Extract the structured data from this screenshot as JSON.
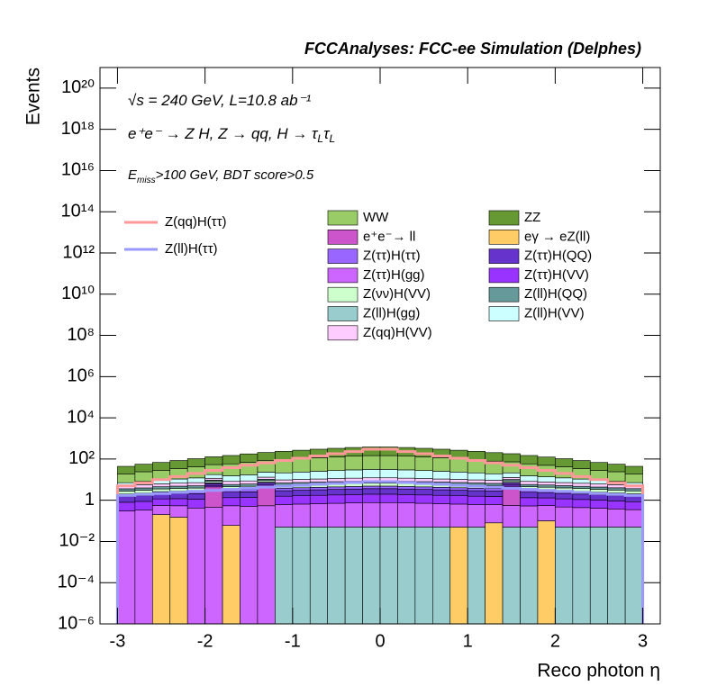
{
  "chart_data": {
    "type": "stacked-histogram",
    "title": "FCCAnalyses: FCC-ee Simulation (Delphes)",
    "xlabel": "Reco photon η",
    "ylabel": "Events",
    "annotations": [
      [
        {
          "text": "√s = 240 GeV, L=10.8 ab⁻¹"
        }
      ],
      [
        {
          "text": "e⁺e⁻ → Z H, Z  → qq, H  → τ"
        },
        {
          "sub": "L"
        },
        {
          "text": "τ"
        },
        {
          "sub": "L"
        }
      ],
      [
        {
          "text": "E"
        },
        {
          "sub": "miss"
        },
        {
          "text": ">100 GeV, BDT score>0.5"
        }
      ]
    ],
    "log_y": true,
    "xlim": [
      -3.2,
      3.2
    ],
    "ylim": [
      1e-06,
      1e+21
    ],
    "xticks": [
      -3,
      -2,
      -1,
      0,
      1,
      2,
      3
    ],
    "yticks": [
      {
        "value": 1e-06,
        "label": "10⁻⁶"
      },
      {
        "value": 0.0001,
        "label": "10⁻⁴"
      },
      {
        "value": 0.01,
        "label": "10⁻²"
      },
      1,
      {
        "value": 100,
        "label": "10²"
      },
      {
        "value": 10000.0,
        "label": "10⁴"
      },
      {
        "value": 1000000.0,
        "label": "10⁶"
      },
      {
        "value": 100000000.0,
        "label": "10⁸"
      },
      {
        "value": 10000000000.0,
        "label": "10¹⁰"
      },
      {
        "value": 1000000000000.0,
        "label": "10¹²"
      },
      {
        "value": 100000000000000.0,
        "label": "10¹⁴"
      },
      {
        "value": 1e+16,
        "label": "10¹⁶"
      },
      {
        "value": 1e+18,
        "label": "10¹⁸"
      },
      {
        "value": 1e+20,
        "label": "10²⁰"
      }
    ],
    "bins": [
      -3,
      -2.8,
      -2.6,
      -2.4,
      -2.2,
      -2,
      -1.8,
      -1.6,
      -1.4,
      -1.2,
      -1,
      -0.8,
      -0.6,
      -0.4,
      -0.2,
      0,
      0.2,
      0.4,
      0.6,
      0.8,
      1,
      1.2,
      1.4,
      1.6,
      1.8,
      2,
      2.2,
      2.4,
      2.6,
      2.8,
      3
    ],
    "series": [
      {
        "name": "WW",
        "color": "#99cc66",
        "values": [
          12,
          16,
          19,
          24,
          30,
          36,
          43,
          52,
          60,
          70,
          79,
          89,
          98,
          108,
          115,
          115,
          108,
          98,
          89,
          79,
          70,
          60,
          52,
          43,
          36,
          30,
          24,
          19,
          16,
          12
        ]
      },
      {
        "name": "ZZ",
        "color": "#669933",
        "values": [
          25,
          32,
          40,
          50,
          62,
          75,
          90,
          108,
          125,
          145,
          165,
          185,
          205,
          225,
          240,
          240,
          225,
          205,
          185,
          165,
          145,
          125,
          108,
          90,
          75,
          62,
          50,
          40,
          32,
          25
        ]
      },
      {
        "name": "e⁺e⁻→ ll",
        "color": "#cc55cc",
        "values": [
          0,
          0,
          0,
          0,
          0,
          4,
          0,
          0,
          4,
          0,
          0,
          0,
          0,
          0,
          0,
          0,
          0,
          0,
          0,
          0,
          0,
          0,
          4,
          0,
          0,
          0,
          0,
          0,
          0,
          0
        ]
      },
      {
        "name": "eγ → eZ(ll)",
        "color": "#ffcc66",
        "values": [
          0,
          0,
          0.2,
          0.15,
          0,
          0,
          0.06,
          0,
          0,
          0,
          0,
          0,
          0,
          0,
          0,
          0,
          0,
          0,
          0,
          0.05,
          0,
          0.08,
          0,
          0,
          0.1,
          0,
          0,
          0,
          0,
          0
        ]
      },
      {
        "name": "Z(ττ)H(ττ)",
        "color": "#9966ff",
        "values": [
          0.5,
          0.55,
          0.6,
          0.65,
          0.7,
          0.75,
          0.8,
          0.85,
          0.9,
          0.95,
          1,
          1.05,
          1.1,
          1.15,
          1.2,
          1.2,
          1.15,
          1.1,
          1.05,
          1,
          0.95,
          0.9,
          0.85,
          0.8,
          0.75,
          0.7,
          0.65,
          0.6,
          0.55,
          0.5
        ]
      },
      {
        "name": "Z(ττ)H(QQ)",
        "color": "#6633cc",
        "values": [
          0.7,
          0.77,
          0.84,
          0.91,
          0.98,
          1.05,
          1.12,
          1.19,
          1.26,
          1.33,
          1.4,
          1.47,
          1.54,
          1.61,
          1.68,
          1.68,
          1.61,
          1.54,
          1.47,
          1.4,
          1.33,
          1.26,
          1.19,
          1.12,
          1.05,
          0.98,
          0.91,
          0.84,
          0.77,
          0.7
        ]
      },
      {
        "name": "Z(ττ)H(gg)",
        "color": "#cc66ff",
        "values": [
          0.3,
          0.33,
          0.36,
          0.39,
          0.42,
          0.45,
          0.48,
          0.51,
          0.54,
          0.57,
          0.6,
          0.63,
          0.66,
          0.69,
          0.72,
          0.72,
          0.69,
          0.66,
          0.63,
          0.6,
          0.57,
          0.54,
          0.51,
          0.48,
          0.45,
          0.42,
          0.39,
          0.36,
          0.33,
          0.3
        ]
      },
      {
        "name": "Z(ττ)H(VV)",
        "color": "#9933ff",
        "values": [
          0.5,
          0.55,
          0.6,
          0.65,
          0.7,
          0.75,
          0.8,
          0.85,
          0.9,
          0.95,
          1,
          1.05,
          1.1,
          1.15,
          1.2,
          1.2,
          1.15,
          1.1,
          1.05,
          1,
          0.95,
          0.9,
          0.85,
          0.8,
          0.75,
          0.7,
          0.65,
          0.6,
          0.55,
          0.5
        ]
      },
      {
        "name": "Z(νν)H(VV)",
        "color": "#ccffcc",
        "values": [
          0.8,
          0.88,
          0.96,
          1.04,
          1.12,
          1.2,
          1.28,
          1.36,
          1.44,
          1.52,
          1.6,
          1.68,
          1.76,
          1.84,
          1.92,
          1.92,
          1.84,
          1.76,
          1.68,
          1.6,
          1.52,
          1.44,
          1.36,
          1.28,
          1.2,
          1.12,
          1.04,
          0.96,
          0.88,
          0.8
        ]
      },
      {
        "name": "Z(ll)H(QQ)",
        "color": "#669999",
        "values": [
          0.8,
          0.88,
          0.96,
          1.04,
          1.12,
          1.2,
          1.28,
          1.36,
          1.44,
          1.52,
          1.6,
          1.68,
          1.76,
          1.84,
          1.92,
          1.92,
          1.84,
          1.76,
          1.68,
          1.6,
          1.52,
          1.44,
          1.36,
          1.28,
          1.2,
          1.12,
          1.04,
          0.96,
          0.88,
          0.8
        ]
      },
      {
        "name": "Z(ll)H(gg)",
        "color": "#99cccc",
        "values": [
          0,
          0,
          0,
          0,
          0,
          0,
          0,
          0,
          0,
          0.05,
          0.05,
          0.05,
          0.05,
          0.05,
          0.05,
          0.05,
          0.05,
          0.05,
          0.05,
          0,
          0.05,
          0,
          0.05,
          0.05,
          0,
          0.05,
          0.05,
          0.05,
          0.05,
          0.05
        ]
      },
      {
        "name": "Z(ll)H(VV)",
        "color": "#ccffff",
        "values": [
          2,
          2.6,
          3.2,
          4,
          5,
          6,
          7.2,
          8.6,
          10,
          11.6,
          13.2,
          14.8,
          16.4,
          18,
          19.2,
          19.2,
          18,
          16.4,
          14.8,
          13.2,
          11.6,
          10,
          8.6,
          7.2,
          6,
          5,
          4,
          3.2,
          2.6,
          2
        ]
      },
      {
        "name": "Z(qq)H(VV)",
        "color": "#ffccff",
        "values": [
          1.5,
          1.65,
          1.8,
          1.95,
          2.1,
          2.25,
          2.4,
          2.55,
          2.7,
          2.85,
          3,
          3.15,
          3.3,
          3.45,
          3.6,
          3.6,
          3.45,
          3.3,
          3.15,
          3,
          2.85,
          2.7,
          2.55,
          2.4,
          2.25,
          2.1,
          1.95,
          1.8,
          1.65,
          1.5
        ]
      }
    ],
    "signals": [
      {
        "name": "Z(qq)H(ττ)",
        "color": "#ff9999",
        "values": [
          5,
          7,
          10,
          14,
          20,
          28,
          38,
          50,
          65,
          85,
          110,
          140,
          180,
          230,
          300,
          300,
          230,
          180,
          140,
          110,
          85,
          65,
          50,
          38,
          28,
          20,
          14,
          10,
          7,
          5
        ]
      },
      {
        "name": "Z(ll)H(ττ)",
        "color": "#9999ff",
        "values": [
          1.7,
          1.9,
          2.1,
          2.4,
          2.7,
          3,
          3.4,
          3.8,
          4.3,
          4.8,
          5.3,
          5.9,
          6.5,
          7.2,
          8,
          8,
          7.2,
          6.5,
          5.9,
          5.3,
          4.8,
          4.3,
          3.8,
          3.4,
          3,
          2.7,
          2.4,
          2.1,
          1.9,
          1.7
        ]
      }
    ]
  }
}
